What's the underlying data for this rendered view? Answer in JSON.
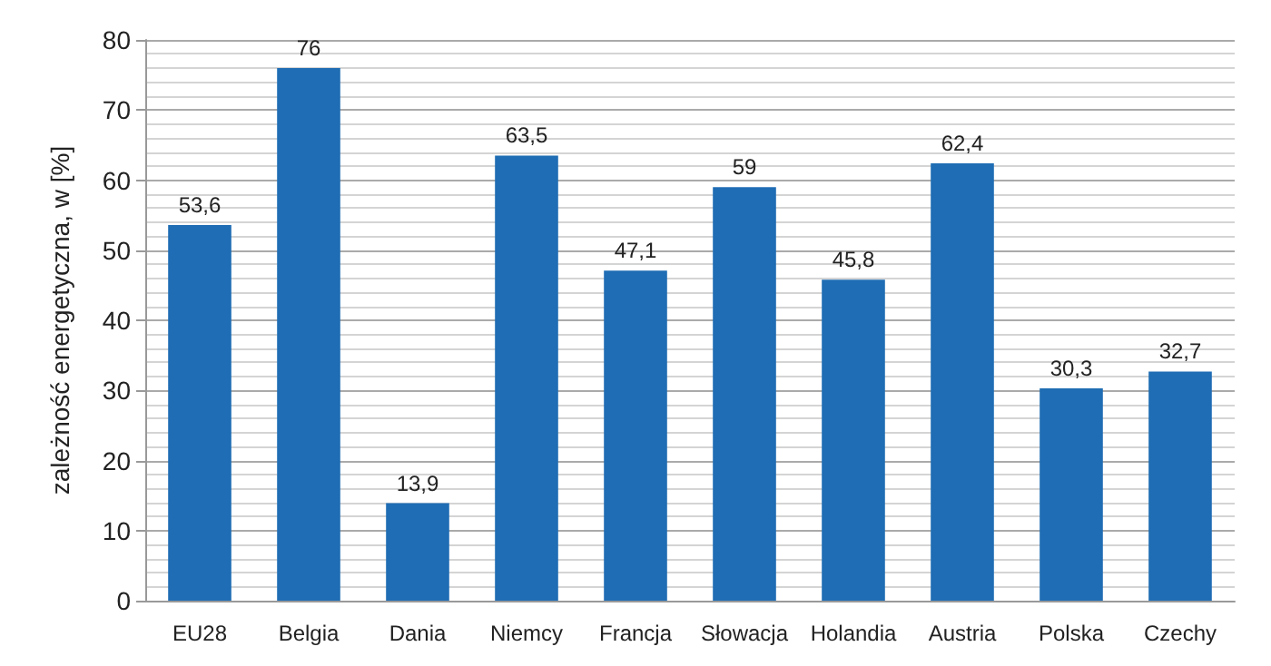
{
  "chart_data": {
    "type": "bar",
    "ylabel": "zależność energetyczna, w [%]",
    "categories": [
      "EU28",
      "Belgia",
      "Dania",
      "Niemcy",
      "Francja",
      "Słowacja",
      "Holandia",
      "Austria",
      "Polska",
      "Czechy"
    ],
    "values": [
      53.6,
      76,
      13.9,
      63.5,
      47.1,
      59,
      45.8,
      62.4,
      30.3,
      32.7
    ],
    "value_labels": [
      "53,6",
      "76",
      "13,9",
      "63,5",
      "47,1",
      "59",
      "45,8",
      "62,4",
      "30,3",
      "32,7"
    ],
    "color": "#1f6db4",
    "ylim": [
      0,
      80
    ],
    "yticks": [
      0,
      10,
      20,
      30,
      40,
      50,
      60,
      70,
      80
    ],
    "grid": "y"
  }
}
